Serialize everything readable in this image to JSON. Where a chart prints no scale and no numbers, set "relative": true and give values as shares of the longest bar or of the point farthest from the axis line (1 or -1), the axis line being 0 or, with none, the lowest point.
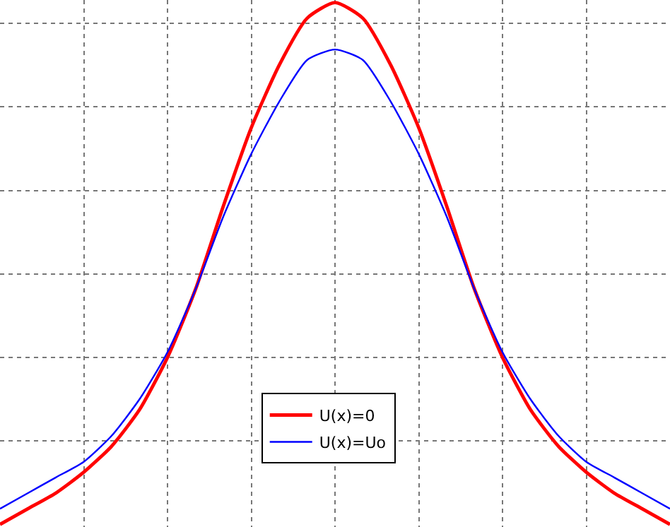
{
  "chart_data": {
    "type": "line",
    "relative": true,
    "grid": true,
    "legend": "bottom",
    "marker": "none",
    "line_style": "solid",
    "categories": [
      null,
      null,
      null,
      null,
      null,
      null,
      null,
      null,
      null,
      null,
      null,
      null,
      null,
      null,
      null,
      null,
      null,
      null,
      null,
      null,
      null,
      null,
      null,
      null,
      null
    ],
    "series": [
      {
        "name": "U(x)=0",
        "color": "#ff0000",
        "values": [
          0.0,
          0.03,
          0.06,
          0.1,
          0.15,
          0.22,
          0.32,
          0.45,
          0.61,
          0.76,
          0.88,
          0.97,
          1.0,
          0.97,
          0.88,
          0.76,
          0.61,
          0.45,
          0.32,
          0.22,
          0.15,
          0.1,
          0.06,
          0.03,
          0.0
        ]
      },
      {
        "name": "U(x)=Uo",
        "color": "#0000ff",
        "values": [
          0.03,
          0.06,
          0.09,
          0.12,
          0.17,
          0.24,
          0.33,
          0.45,
          0.59,
          0.71,
          0.81,
          0.89,
          0.91,
          0.89,
          0.81,
          0.71,
          0.59,
          0.45,
          0.33,
          0.24,
          0.17,
          0.12,
          0.09,
          0.06,
          0.03
        ]
      }
    ]
  }
}
